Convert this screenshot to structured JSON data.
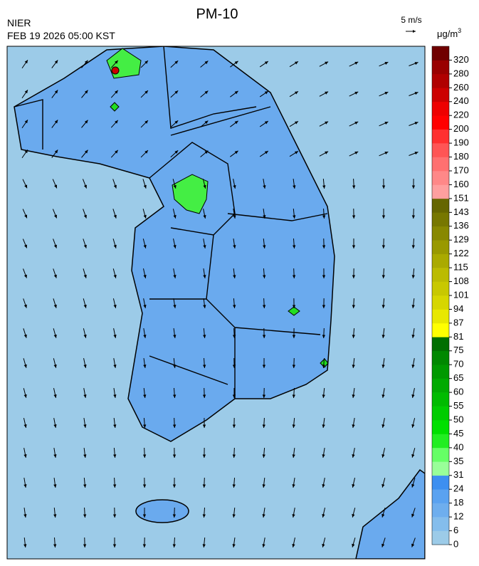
{
  "header": {
    "title": "PM-10",
    "agency": "NIER",
    "timestamp": "FEB 19 2026 05:00 KST",
    "wind_scale": "5 m/s"
  },
  "legend": {
    "unit": "μg/m",
    "unit_sup": "3",
    "ticks": [
      0,
      6,
      12,
      18,
      24,
      31,
      35,
      40,
      45,
      50,
      55,
      60,
      65,
      70,
      75,
      81,
      87,
      94,
      101,
      108,
      115,
      122,
      129,
      136,
      143,
      151,
      160,
      170,
      180,
      190,
      200,
      220,
      240,
      260,
      280,
      320
    ],
    "colors": [
      "#9ccbe8",
      "#84bdec",
      "#6eaeee",
      "#5aa2f0",
      "#3d8ff0",
      "#99ff99",
      "#66ff66",
      "#22ee22",
      "#00e000",
      "#00cc00",
      "#00bb00",
      "#00aa00",
      "#009900",
      "#008800",
      "#006f00",
      "#ffff00",
      "#e8e800",
      "#d6d600",
      "#c8c800",
      "#bbbb00",
      "#aaaa00",
      "#999900",
      "#888800",
      "#777700",
      "#666600",
      "#ff9f9f",
      "#ff8888",
      "#ff7070",
      "#ff5555",
      "#ff3030",
      "#ff0000",
      "#ee0000",
      "#cc0000",
      "#b00000",
      "#990000",
      "#700000"
    ]
  }
}
